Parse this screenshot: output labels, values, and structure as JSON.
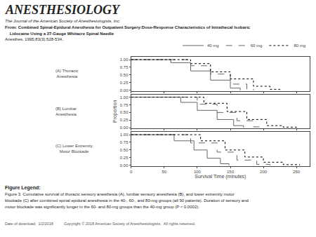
{
  "chart_data": [
    {
      "type": "step",
      "title": "(A) Thoracic\nAnesthesia",
      "annotations": [
        "ANESTHESIOLOGY",
        "The Journal of the American Society of Anesthesiologists, Inc.",
        "From: Combined Spinal-Epidural Anesthesia for Outpatient Surgery:Dose-Response Characteristics of Intrathecal Isobaric",
        "    Lidocaine Using a 27-Gauge Whitacre Spinal Needle",
        "Anesthes. 1995;83(3):528-534..",
        "Figure Legend:",
        "Figure 3. Cumulative survival of thoracic sensory anesthesia (A), lumbar sensory anesthesia (B), and lower extremity motor",
        "blockade (C) after combined spinal epidural anesthesia in the 40-, 60-, and 80-mg groups (all 90 patients). Duration of sensory and",
        "motor blockade was significantly longer in the 60- and 80-mg groups than the 40-mg group (P < 0.0002).",
        "Date of download:  1/2/2018          Copyright © 2018 American Society of Anesthesiologists.  All rights reserved."
      ],
      "series": [
        {
          "name": "40 mg",
          "color": "#666666",
          "line_style": "solid",
          "x": [
            0,
            40,
            60,
            90,
            120,
            150,
            165
          ],
          "values": [
            1.0,
            1.0,
            0.9,
            0.63,
            0.33,
            0.07,
            0.0
          ]
        },
        {
          "name": "60 mg",
          "color": "#666666",
          "line_style": "dashed",
          "x": [
            0,
            60,
            90,
            120,
            150,
            175,
            185
          ],
          "values": [
            1.0,
            1.0,
            0.8,
            0.53,
            0.2,
            0.03,
            0.0
          ]
        },
        {
          "name": "80 mg",
          "color": "#000000",
          "line_style": "dotted",
          "x": [
            0,
            60,
            90,
            120,
            150,
            185,
            210,
            225
          ],
          "values": [
            1.0,
            1.0,
            0.87,
            0.6,
            0.37,
            0.13,
            0.03,
            0.0
          ]
        }
      ],
      "xlim": [
        0,
        270
      ],
      "xticks": [
        0,
        50,
        100,
        150,
        200,
        250
      ],
      "ylim": [
        -0.02,
        1.09
      ],
      "yticks": [
        {
          "value": 0.0,
          "label": "0.00"
        },
        0.25,
        {
          "value": 0.5,
          "label": "0.50"
        },
        0.75,
        {
          "value": 1.0,
          "label": "1.00"
        }
      ],
      "grid": false,
      "legend": "upper right",
      "tick_labels": "y"
    },
    {
      "type": "step",
      "title": "(B) Lumbar\nAnesthesia",
      "ylabel": "Proportion",
      "series": [
        {
          "color": "#666666",
          "line_style": "solid",
          "x": [
            0,
            50,
            75,
            100,
            130,
            155,
            170
          ],
          "values": [
            1.0,
            1.0,
            0.83,
            0.57,
            0.27,
            0.07,
            0.0
          ]
        },
        {
          "color": "#666666",
          "line_style": "dashed",
          "x": [
            0,
            60,
            100,
            130,
            160,
            185,
            200
          ],
          "values": [
            1.0,
            1.0,
            0.77,
            0.5,
            0.23,
            0.03,
            0.0
          ]
        },
        {
          "color": "#000000",
          "line_style": "dotted",
          "x": [
            0,
            70,
            110,
            145,
            175,
            205,
            230,
            250
          ],
          "values": [
            1.0,
            1.0,
            0.8,
            0.53,
            0.27,
            0.07,
            0.02,
            0.0
          ]
        }
      ],
      "xlim": [
        0,
        270
      ],
      "xticks": [
        0,
        50,
        100,
        150,
        200,
        250
      ],
      "ylim": [
        -0.02,
        1.09
      ],
      "yticks": [
        {
          "value": 0.0,
          "label": "0.00"
        },
        0.25,
        {
          "value": 0.5,
          "label": "0.50"
        },
        0.75,
        {
          "value": 1.0,
          "label": "1.00"
        }
      ],
      "grid": false,
      "tick_labels": "y"
    },
    {
      "type": "step",
      "title": "(C) Lower Extremity\nMotor Blockade",
      "xlabel": "Survival Time (minutes)",
      "series": [
        {
          "color": "#666666",
          "line_style": "solid",
          "x": [
            0,
            35,
            65,
            95,
            115,
            135,
            148
          ],
          "values": [
            1.0,
            1.0,
            0.8,
            0.5,
            0.23,
            0.05,
            0.0
          ]
        },
        {
          "color": "#666666",
          "line_style": "dashed",
          "x": [
            0,
            55,
            90,
            130,
            160,
            190,
            210
          ],
          "values": [
            1.0,
            1.0,
            0.73,
            0.43,
            0.17,
            0.03,
            0.0
          ]
        },
        {
          "color": "#000000",
          "line_style": "dotted",
          "x": [
            0,
            65,
            105,
            142,
            172,
            200,
            230,
            255
          ],
          "values": [
            1.0,
            1.0,
            0.8,
            0.5,
            0.27,
            0.1,
            0.02,
            0.0
          ]
        }
      ],
      "xlim": [
        0,
        270
      ],
      "xticks": [
        0,
        50,
        100,
        150,
        200,
        250
      ],
      "ylim": [
        -0.02,
        1.09
      ],
      "yticks": [
        {
          "value": 0.0,
          "label": "0.00"
        },
        0.25,
        {
          "value": 0.5,
          "label": "0.50"
        },
        0.75,
        {
          "value": 1.0,
          "label": "1.00"
        }
      ],
      "grid": false
    }
  ]
}
